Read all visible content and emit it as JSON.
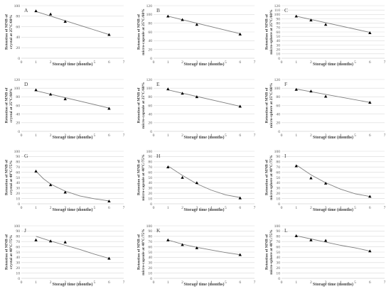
{
  "chart_data": [
    {
      "type": "scatter",
      "panel": "A",
      "ylabel": "Retention of MNB of crystal at 25°C/60%",
      "xlabel": "Storage time (months)",
      "xlim": [
        0,
        7
      ],
      "ylim": [
        0,
        100
      ],
      "ytick_step": 20,
      "x": [
        1,
        2,
        3,
        6
      ],
      "y": [
        90,
        84,
        70,
        45
      ],
      "trend": [
        [
          1,
          89
        ],
        [
          6,
          45
        ]
      ],
      "trendline": "linear"
    },
    {
      "type": "scatter",
      "panel": "B",
      "ylabel": "Retention of MNB of micro-capsule at 25°C/60%",
      "xlabel": "Storage time (months)",
      "xlim": [
        0,
        7
      ],
      "ylim": [
        0,
        120
      ],
      "ytick_step": 20,
      "x": [
        1,
        2,
        3,
        6
      ],
      "y": [
        96,
        88,
        77,
        55
      ],
      "trend": [
        [
          1,
          96
        ],
        [
          6,
          56
        ]
      ],
      "trendline": "linear"
    },
    {
      "type": "scatter",
      "panel": "C",
      "ylabel": "Retention of MNB of micro-sphere at 25°C/60%",
      "xlabel": "Storage time (months)",
      "xlim": [
        0,
        7
      ],
      "ylim": [
        0,
        120
      ],
      "ytick_step": 10,
      "x": [
        1,
        2,
        3,
        6
      ],
      "y": [
        96,
        87,
        77,
        58
      ],
      "trend": [
        [
          1,
          96
        ],
        [
          6,
          59
        ]
      ],
      "trendline": "linear"
    },
    {
      "type": "scatter",
      "panel": "D",
      "ylabel": "Retention of MNB of crystal at 25°C/60%",
      "xlabel": "Storage time (months)",
      "xlim": [
        0,
        7
      ],
      "ylim": [
        0,
        120
      ],
      "ytick_step": 20,
      "x": [
        1,
        2,
        3,
        6
      ],
      "y": [
        96,
        86,
        75,
        53
      ],
      "trend": [
        [
          1,
          94
        ],
        [
          6,
          54
        ]
      ],
      "trendline": "linear"
    },
    {
      "type": "scatter",
      "panel": "E",
      "ylabel": "Retention of MNB of micro-capsule at 25°C/60%",
      "xlabel": "Storage time (months)",
      "xlim": [
        0,
        7
      ],
      "ylim": [
        0,
        120
      ],
      "ytick_step": 20,
      "x": [
        1,
        2,
        3,
        6
      ],
      "y": [
        98,
        88,
        80,
        58
      ],
      "trend": [
        [
          1,
          96
        ],
        [
          6,
          58
        ]
      ],
      "trendline": "linear"
    },
    {
      "type": "scatter",
      "panel": "F",
      "ylabel": "Retention of MNB of micro-sphere at 25°C/60%",
      "xlabel": "Storage time (months)",
      "xlim": [
        0,
        7
      ],
      "ylim": [
        0,
        120
      ],
      "ytick_step": 20,
      "x": [
        1,
        2,
        3,
        6
      ],
      "y": [
        97,
        93,
        81,
        67
      ],
      "trend": [
        [
          1,
          98
        ],
        [
          6,
          67
        ]
      ],
      "trendline": "linear"
    },
    {
      "type": "scatter",
      "panel": "G",
      "ylabel": "Retention of MNB of crystal at 40°C/75%",
      "xlabel": "Storage time (months)",
      "xlim": [
        0,
        7
      ],
      "ylim": [
        0,
        100
      ],
      "ytick_step": 10,
      "x": [
        1,
        2,
        3,
        6
      ],
      "y": [
        62,
        36,
        22,
        5
      ],
      "trend": [
        [
          1,
          62
        ],
        [
          1.5,
          48
        ],
        [
          2,
          37.5
        ],
        [
          3,
          24
        ],
        [
          4,
          15
        ],
        [
          5,
          9.5
        ],
        [
          6,
          5.5
        ]
      ],
      "trendline": "curve"
    },
    {
      "type": "scatter",
      "panel": "H",
      "ylabel": "Retention of MNB of micro-capsule at 40°C/75%",
      "xlabel": "Storage time (months)",
      "xlim": [
        0,
        7
      ],
      "ylim": [
        0,
        100
      ],
      "ytick_step": 10,
      "x": [
        1,
        2,
        3,
        6
      ],
      "y": [
        70,
        50,
        40,
        11
      ],
      "trend": [
        [
          1,
          72
        ],
        [
          2,
          54
        ],
        [
          3,
          38
        ],
        [
          4,
          26
        ],
        [
          5,
          17
        ],
        [
          6,
          12
        ]
      ],
      "trendline": "curve"
    },
    {
      "type": "scatter",
      "panel": "I",
      "ylabel": "Retention of MNB of micro-sphere at 40°C/75%",
      "xlabel": "Storage time (months)",
      "xlim": [
        0,
        7
      ],
      "ylim": [
        0,
        100
      ],
      "ytick_step": 10,
      "x": [
        1,
        2,
        3,
        6
      ],
      "y": [
        72,
        49,
        39,
        14
      ],
      "trend": [
        [
          1,
          74
        ],
        [
          2,
          55
        ],
        [
          3,
          40
        ],
        [
          4,
          28
        ],
        [
          5,
          19
        ],
        [
          6,
          14
        ]
      ],
      "trendline": "curve"
    },
    {
      "type": "scatter",
      "panel": "J",
      "ylabel": "Retention of MNB of crystal at 40°C/75%",
      "xlabel": "Storage time (months)",
      "xlim": [
        0,
        7
      ],
      "ylim": [
        0,
        100
      ],
      "ytick_step": 10,
      "x": [
        1,
        2,
        3,
        6
      ],
      "y": [
        73,
        71,
        69,
        38
      ],
      "trend": [
        [
          1,
          80
        ],
        [
          2,
          71
        ],
        [
          3,
          63
        ],
        [
          4,
          55
        ],
        [
          5,
          46
        ],
        [
          6,
          38
        ]
      ],
      "trendline": "curve"
    },
    {
      "type": "scatter",
      "panel": "K",
      "ylabel": "Retention of MNB of micro-capsule at 40°C/75%",
      "xlabel": "Storage time (months)",
      "xlim": [
        0,
        7
      ],
      "ylim": [
        0,
        100
      ],
      "ytick_step": 10,
      "x": [
        1,
        2,
        3,
        6
      ],
      "y": [
        73,
        64,
        58,
        45
      ],
      "trend": [
        [
          1,
          73
        ],
        [
          2,
          65
        ],
        [
          3,
          59
        ],
        [
          4,
          54
        ],
        [
          5,
          49
        ],
        [
          6,
          45
        ]
      ],
      "trendline": "curve"
    },
    {
      "type": "scatter",
      "panel": "L",
      "ylabel": "Retention of MNB of micro-sphere at 40°C/75%",
      "xlabel": "Storage time (months)",
      "xlim": [
        0,
        7
      ],
      "ylim": [
        0,
        100
      ],
      "ytick_step": 10,
      "x": [
        1,
        2,
        3,
        6
      ],
      "y": [
        81,
        73,
        72,
        52
      ],
      "trend": [
        [
          1,
          81
        ],
        [
          2,
          75
        ],
        [
          3,
          69
        ],
        [
          4,
          63
        ],
        [
          5,
          58
        ],
        [
          6,
          52
        ]
      ],
      "trendline": "curve"
    }
  ],
  "colors": {
    "grid": "#d9d9d9",
    "axis": "#bfbfbf",
    "trend": "#808080",
    "marker": "#000000",
    "text": "#595959"
  }
}
